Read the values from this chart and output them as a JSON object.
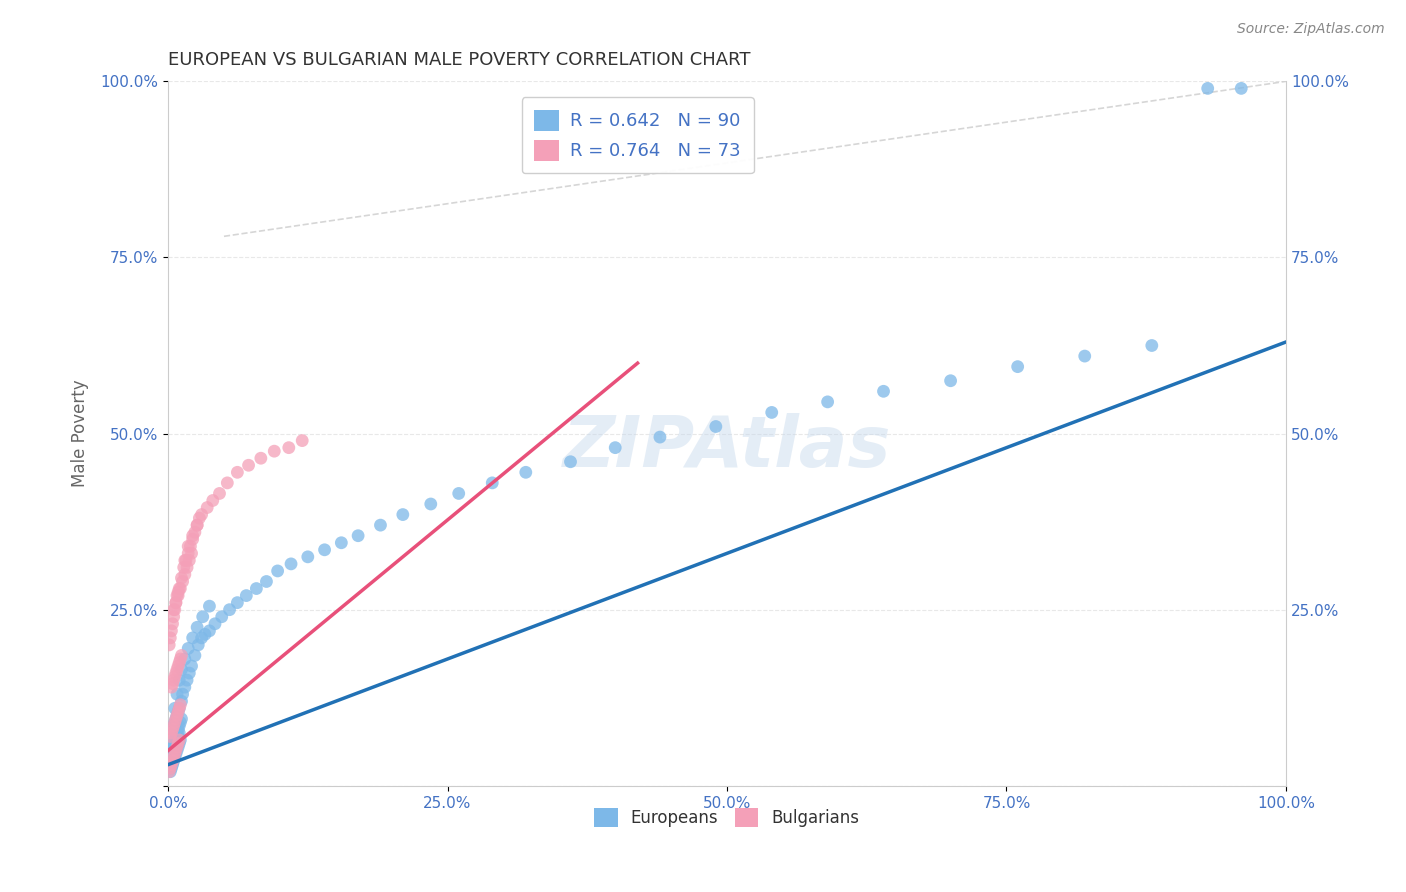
{
  "title": "EUROPEAN VS BULGARIAN MALE POVERTY CORRELATION CHART",
  "source": "Source: ZipAtlas.com",
  "ylabel": "Male Poverty",
  "xlabel": "",
  "xlim": [
    0,
    1.0
  ],
  "ylim": [
    0,
    1.0
  ],
  "xticks": [
    0.0,
    0.25,
    0.5,
    0.75,
    1.0
  ],
  "yticks": [
    0.0,
    0.25,
    0.5,
    0.75,
    1.0
  ],
  "xticklabels": [
    "0.0%",
    "25.0%",
    "50.0%",
    "75.0%",
    "100.0%"
  ],
  "yticklabels": [
    "",
    "25.0%",
    "50.0%",
    "75.0%",
    "100.0%"
  ],
  "european_color": "#7db8e8",
  "bulgarian_color": "#f4a0b8",
  "european_R": 0.642,
  "european_N": 90,
  "bulgarian_R": 0.764,
  "bulgarian_N": 73,
  "european_line_color": "#2171b5",
  "bulgarian_line_color": "#e8507a",
  "diagonal_color": "#cccccc",
  "title_color": "#333333",
  "axis_label_color": "#666666",
  "tick_color": "#4472c4",
  "grid_color": "#e8e8e8",
  "watermark": "ZIPAtlas",
  "background_color": "#ffffff",
  "european_scatter": {
    "x": [
      0.001,
      0.002,
      0.003,
      0.004,
      0.005,
      0.006,
      0.007,
      0.008,
      0.009,
      0.01,
      0.002,
      0.003,
      0.004,
      0.005,
      0.006,
      0.007,
      0.008,
      0.009,
      0.01,
      0.011,
      0.003,
      0.004,
      0.005,
      0.006,
      0.007,
      0.008,
      0.009,
      0.01,
      0.011,
      0.012,
      0.004,
      0.005,
      0.006,
      0.007,
      0.008,
      0.009,
      0.01,
      0.012,
      0.013,
      0.015,
      0.017,
      0.019,
      0.021,
      0.024,
      0.027,
      0.03,
      0.033,
      0.037,
      0.042,
      0.048,
      0.055,
      0.062,
      0.07,
      0.079,
      0.088,
      0.098,
      0.11,
      0.125,
      0.14,
      0.155,
      0.17,
      0.19,
      0.21,
      0.235,
      0.26,
      0.29,
      0.32,
      0.36,
      0.4,
      0.44,
      0.49,
      0.54,
      0.59,
      0.64,
      0.7,
      0.76,
      0.82,
      0.88,
      0.93,
      0.96,
      0.006,
      0.008,
      0.01,
      0.012,
      0.015,
      0.018,
      0.022,
      0.026,
      0.031,
      0.037
    ],
    "y": [
      0.03,
      0.035,
      0.04,
      0.045,
      0.05,
      0.055,
      0.06,
      0.065,
      0.07,
      0.075,
      0.02,
      0.025,
      0.03,
      0.035,
      0.04,
      0.045,
      0.05,
      0.055,
      0.06,
      0.065,
      0.05,
      0.055,
      0.06,
      0.065,
      0.07,
      0.075,
      0.08,
      0.085,
      0.09,
      0.095,
      0.08,
      0.085,
      0.09,
      0.095,
      0.1,
      0.105,
      0.11,
      0.12,
      0.13,
      0.14,
      0.15,
      0.16,
      0.17,
      0.185,
      0.2,
      0.21,
      0.215,
      0.22,
      0.23,
      0.24,
      0.25,
      0.26,
      0.27,
      0.28,
      0.29,
      0.305,
      0.315,
      0.325,
      0.335,
      0.345,
      0.355,
      0.37,
      0.385,
      0.4,
      0.415,
      0.43,
      0.445,
      0.46,
      0.48,
      0.495,
      0.51,
      0.53,
      0.545,
      0.56,
      0.575,
      0.595,
      0.61,
      0.625,
      0.99,
      0.99,
      0.11,
      0.13,
      0.15,
      0.165,
      0.18,
      0.195,
      0.21,
      0.225,
      0.24,
      0.255
    ]
  },
  "bulgarian_scatter": {
    "x": [
      0.001,
      0.002,
      0.003,
      0.004,
      0.005,
      0.006,
      0.007,
      0.008,
      0.009,
      0.01,
      0.002,
      0.003,
      0.004,
      0.005,
      0.006,
      0.007,
      0.008,
      0.009,
      0.01,
      0.011,
      0.003,
      0.004,
      0.005,
      0.006,
      0.007,
      0.008,
      0.009,
      0.01,
      0.011,
      0.012,
      0.001,
      0.002,
      0.003,
      0.004,
      0.005,
      0.006,
      0.007,
      0.008,
      0.009,
      0.01,
      0.012,
      0.015,
      0.018,
      0.022,
      0.026,
      0.03,
      0.035,
      0.04,
      0.046,
      0.053,
      0.062,
      0.072,
      0.083,
      0.095,
      0.108,
      0.12,
      0.014,
      0.016,
      0.018,
      0.02,
      0.022,
      0.024,
      0.026,
      0.028,
      0.005,
      0.007,
      0.009,
      0.011,
      0.013,
      0.015,
      0.017,
      0.019,
      0.021
    ],
    "y": [
      0.02,
      0.025,
      0.03,
      0.035,
      0.04,
      0.045,
      0.05,
      0.055,
      0.06,
      0.065,
      0.07,
      0.075,
      0.08,
      0.085,
      0.09,
      0.095,
      0.1,
      0.105,
      0.11,
      0.115,
      0.14,
      0.145,
      0.15,
      0.155,
      0.16,
      0.165,
      0.17,
      0.175,
      0.18,
      0.185,
      0.2,
      0.21,
      0.22,
      0.23,
      0.24,
      0.25,
      0.26,
      0.27,
      0.275,
      0.28,
      0.295,
      0.32,
      0.34,
      0.355,
      0.37,
      0.385,
      0.395,
      0.405,
      0.415,
      0.43,
      0.445,
      0.455,
      0.465,
      0.475,
      0.48,
      0.49,
      0.31,
      0.32,
      0.33,
      0.34,
      0.35,
      0.36,
      0.37,
      0.38,
      0.25,
      0.26,
      0.27,
      0.28,
      0.29,
      0.3,
      0.31,
      0.32,
      0.33
    ]
  },
  "european_line": {
    "x0": 0.0,
    "y0": 0.03,
    "x1": 1.0,
    "y1": 0.63
  },
  "bulgarian_line": {
    "x0": 0.0,
    "y0": 0.05,
    "x1": 0.42,
    "y1": 0.6
  },
  "diagonal_line": {
    "x0": 0.05,
    "y0": 0.78,
    "x1": 1.0,
    "y1": 1.0
  }
}
